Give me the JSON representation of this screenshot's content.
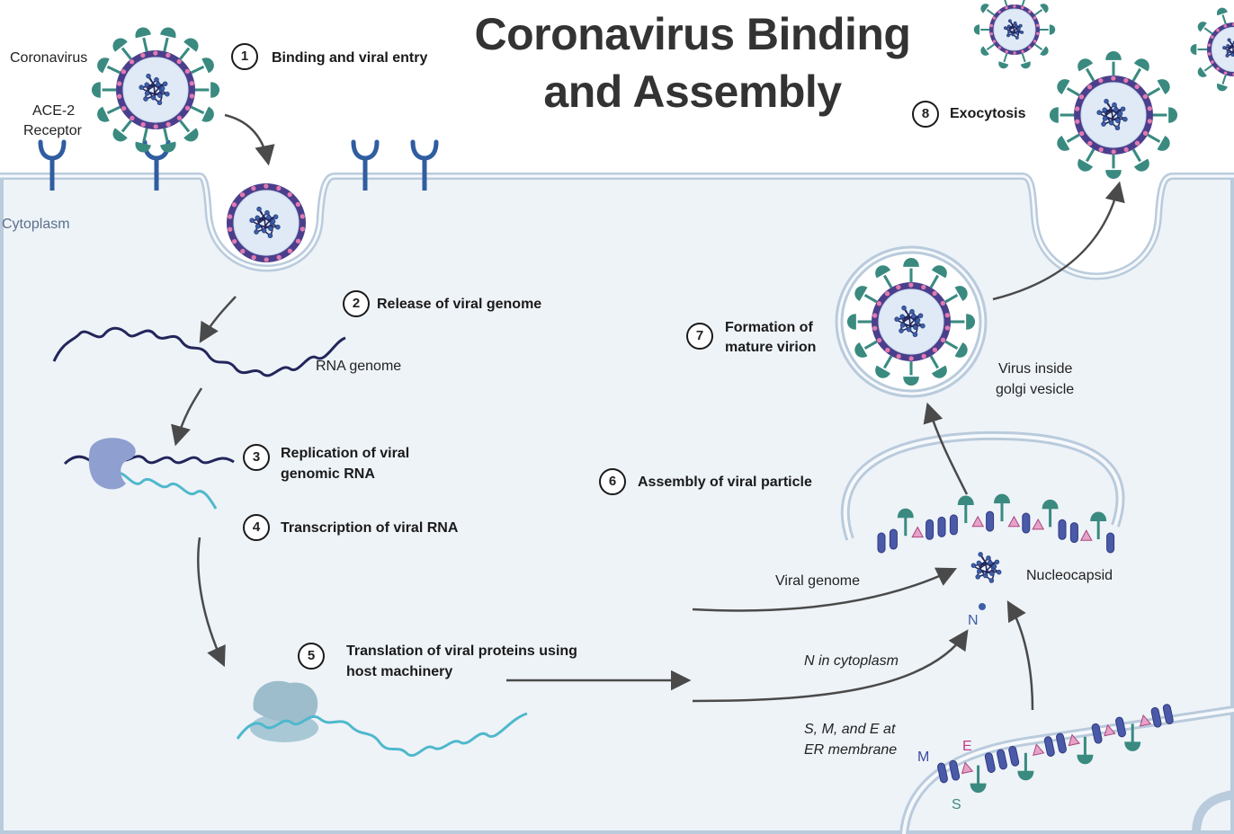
{
  "title_line1": "Coronavirus Binding",
  "title_line2": "and Assembly",
  "labels": {
    "coronavirus": "Coronavirus",
    "ace2": "ACE-2",
    "receptor": "Receptor",
    "cytoplasm": "Cytoplasm",
    "rna_genome": "RNA genome",
    "viral_genome": "Viral genome",
    "nucleocapsid": "Nucleocapsid",
    "n": "N",
    "n_cytoplasm": "N in cytoplasm",
    "smE_line1": "S, M, and E at",
    "smE_line2": "ER membrane",
    "m": "M",
    "e": "E",
    "s": "S",
    "golgi_line1": "Virus inside",
    "golgi_line2": "golgi vesicle"
  },
  "steps": [
    {
      "num": "1",
      "line1": "Binding and viral entry",
      "line2": ""
    },
    {
      "num": "2",
      "line1": "Release of viral genome",
      "line2": ""
    },
    {
      "num": "3",
      "line1": "Replication of viral",
      "line2": "genomic RNA"
    },
    {
      "num": "4",
      "line1": "Transcription of viral RNA",
      "line2": ""
    },
    {
      "num": "5",
      "line1": "Translation of viral proteins using",
      "line2": "host machinery"
    },
    {
      "num": "6",
      "line1": "Assembly of viral particle",
      "line2": ""
    },
    {
      "num": "7",
      "line1": "Formation of",
      "line2": "mature virion"
    },
    {
      "num": "8",
      "line1": "Exocytosis",
      "line2": ""
    }
  ],
  "colors": {
    "membrane_fill": "#eef3f8",
    "membrane_edge": "#b9cbdc",
    "spike": "#3a8a80",
    "receptor": "#2f5da0",
    "rna": "#23265a",
    "mrna": "#4fb8cc",
    "capsid": "#3d5fa8",
    "envelope": "#4a3f8c",
    "arrow": "#4a4a4a",
    "e_protein": "#c43a8a",
    "m_protein": "#4a5aa8"
  }
}
